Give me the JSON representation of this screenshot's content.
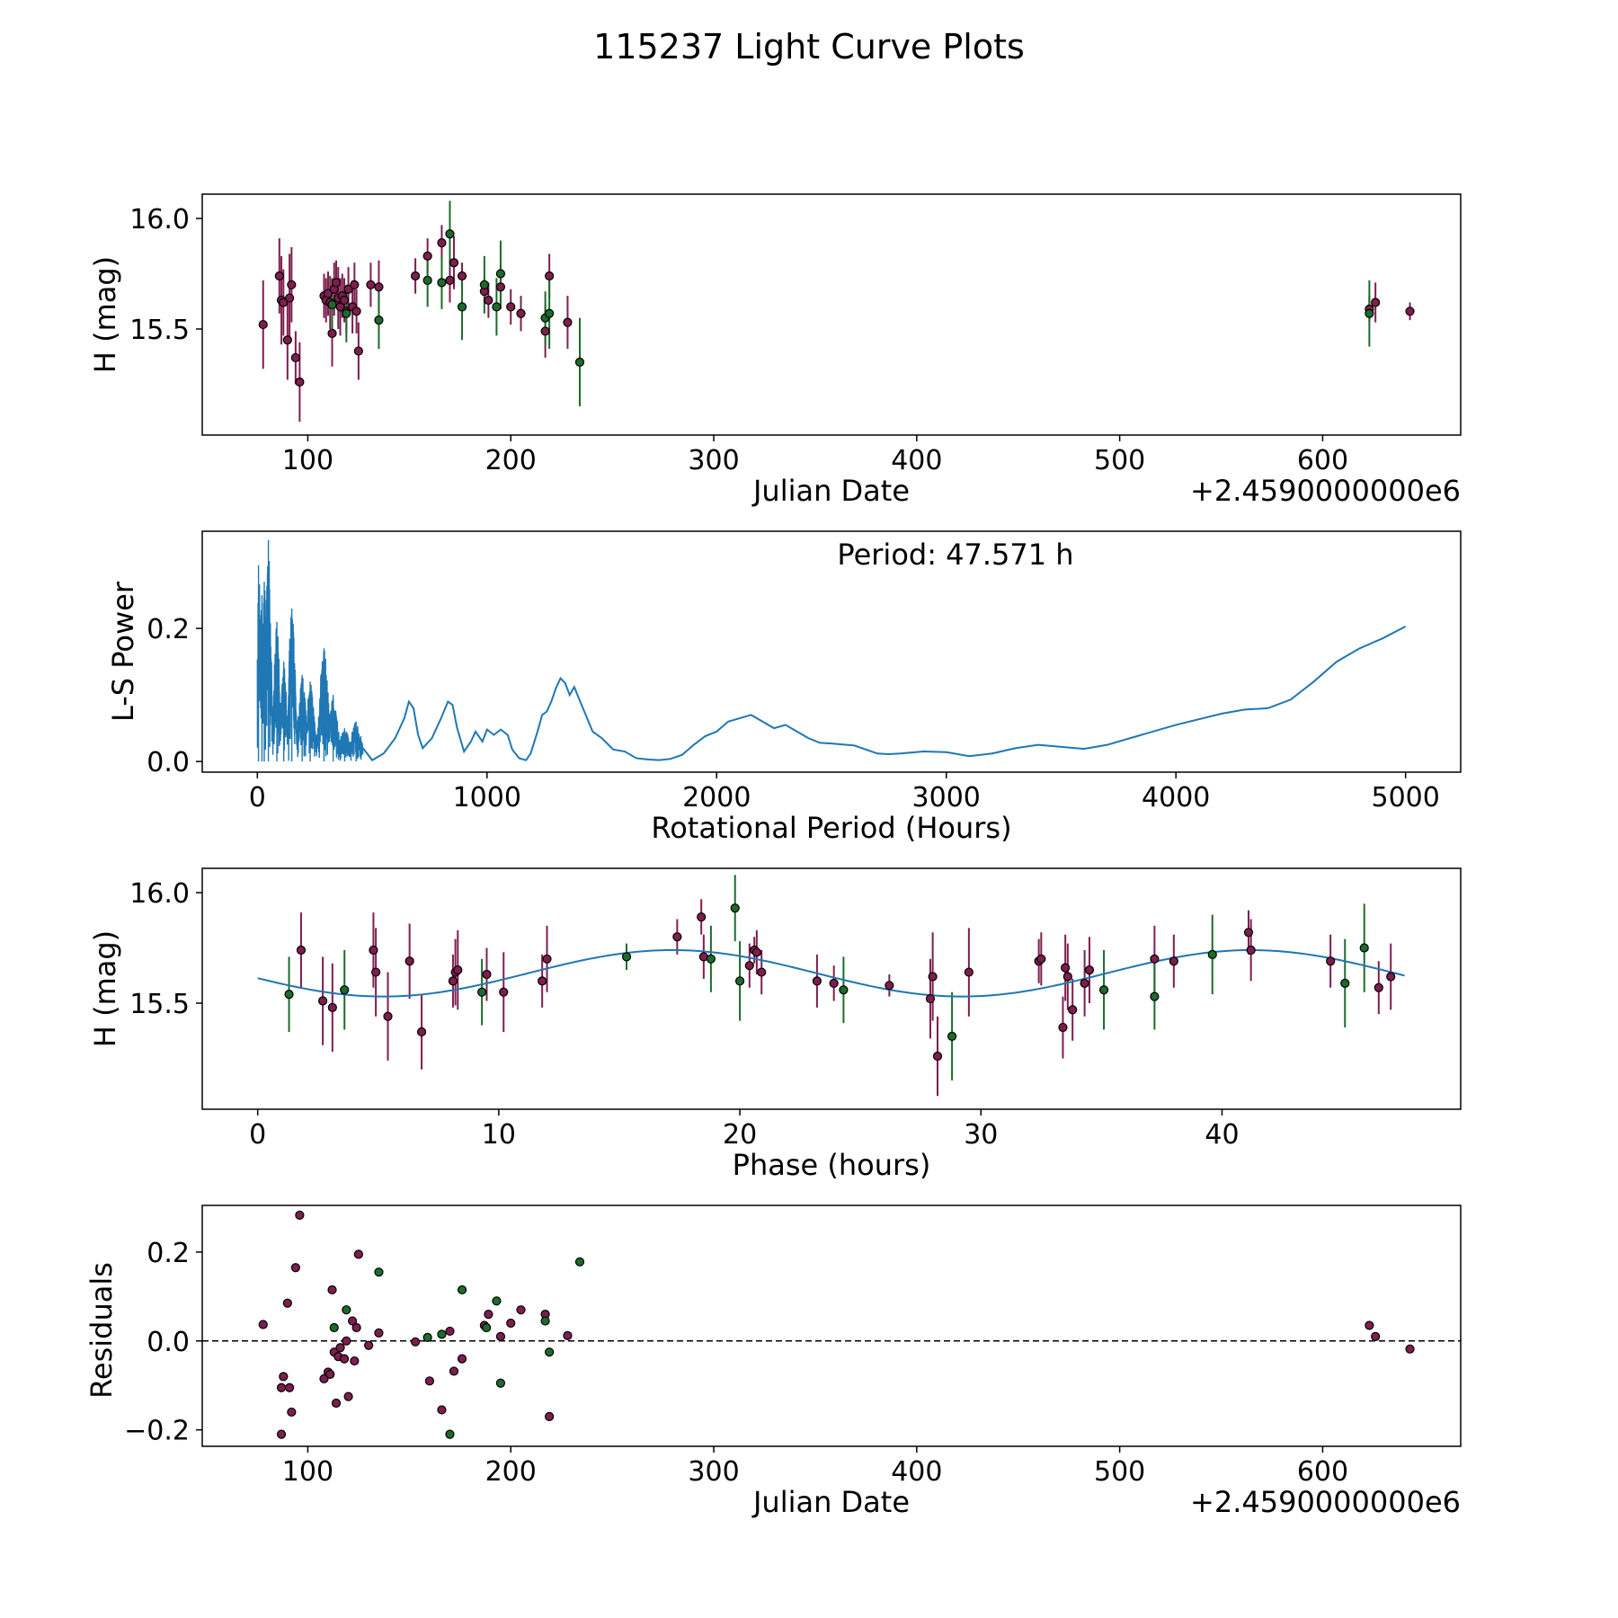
{
  "title": "115237 Light Curve Plots",
  "colors": {
    "red": "#7e1e4e",
    "green": "#1c6b2c",
    "blue": "#1f77b4",
    "edge": "#000000"
  },
  "chart_data": [
    {
      "id": "lightcurve",
      "type": "scatter",
      "xlabel": "Julian Date",
      "ylabel": "H (mag)",
      "offset_text": "+2.4590000000e6",
      "xlim": [
        48,
        668
      ],
      "ylim": [
        15.02,
        16.11
      ],
      "xticks": [
        100,
        200,
        300,
        400,
        500,
        600
      ],
      "xtick_labels": [
        "100",
        "200",
        "300",
        "400",
        "500",
        "600"
      ],
      "yticks": [
        15.5,
        16.0
      ],
      "ytick_labels": [
        "15.5",
        "16.0"
      ],
      "series": [
        {
          "name": "red",
          "x": [
            78,
            86,
            87,
            88,
            90,
            91,
            92,
            94,
            96,
            108,
            109,
            110,
            111,
            112,
            113,
            114,
            115,
            116,
            117,
            118,
            119,
            120,
            122,
            123,
            124,
            125,
            131,
            135,
            153,
            159,
            166,
            170,
            172,
            176,
            187,
            189,
            195,
            200,
            205,
            217,
            219,
            228,
            623,
            626,
            643
          ],
          "y": [
            15.52,
            15.74,
            15.63,
            15.62,
            15.45,
            15.64,
            15.7,
            15.37,
            15.26,
            15.65,
            15.63,
            15.66,
            15.62,
            15.48,
            15.68,
            15.71,
            15.64,
            15.6,
            15.65,
            15.63,
            15.58,
            15.68,
            15.6,
            15.7,
            15.58,
            15.4,
            15.7,
            15.69,
            15.74,
            15.83,
            15.89,
            15.72,
            15.8,
            15.74,
            15.67,
            15.63,
            15.69,
            15.6,
            15.57,
            15.49,
            15.74,
            15.53,
            15.59,
            15.62,
            15.58
          ],
          "err": [
            0.2,
            0.17,
            0.2,
            0.15,
            0.18,
            0.2,
            0.17,
            0.12,
            0.18,
            0.1,
            0.1,
            0.1,
            0.12,
            0.15,
            0.12,
            0.1,
            0.14,
            0.13,
            0.1,
            0.1,
            0.1,
            0.1,
            0.12,
            0.1,
            0.1,
            0.13,
            0.1,
            0.12,
            0.08,
            0.08,
            0.08,
            0.1,
            0.12,
            0.06,
            0.06,
            0.08,
            0.1,
            0.08,
            0.08,
            0.12,
            0.1,
            0.12,
            0.06,
            0.09,
            0.04
          ]
        },
        {
          "name": "green",
          "x": [
            112,
            119,
            135,
            159,
            166,
            170,
            176,
            187,
            193,
            195,
            217,
            219,
            234,
            623
          ],
          "y": [
            15.61,
            15.57,
            15.54,
            15.72,
            15.71,
            15.93,
            15.6,
            15.7,
            15.6,
            15.75,
            15.55,
            15.57,
            15.35,
            15.57
          ]
        },
        {
          "name": "green-err",
          "err": [
            0.12,
            0.13,
            0.13,
            0.12,
            0.12,
            0.15,
            0.15,
            0.13,
            0.13,
            0.15,
            0.12,
            0.16,
            0.2,
            0.15
          ]
        }
      ]
    },
    {
      "id": "periodogram",
      "type": "line",
      "xlabel": "Rotational Period (Hours)",
      "ylabel": "L-S Power",
      "annotation": "Period: 47.571 h",
      "xlim": [
        -240,
        5240
      ],
      "ylim": [
        -0.016,
        0.346
      ],
      "xticks": [
        0,
        1000,
        2000,
        3000,
        4000,
        5000
      ],
      "xtick_labels": [
        "0",
        "1000",
        "2000",
        "3000",
        "4000",
        "5000"
      ],
      "yticks": [
        0.0,
        0.2
      ],
      "ytick_labels": [
        "0.0",
        "0.2"
      ],
      "x": [
        500,
        550,
        600,
        640,
        660,
        680,
        700,
        720,
        760,
        800,
        830,
        850,
        870,
        900,
        930,
        950,
        980,
        1000,
        1030,
        1060,
        1090,
        1110,
        1140,
        1170,
        1190,
        1220,
        1240,
        1260,
        1280,
        1300,
        1320,
        1340,
        1360,
        1380,
        1400,
        1430,
        1460,
        1500,
        1550,
        1600,
        1650,
        1700,
        1750,
        1800,
        1850,
        1900,
        1950,
        2000,
        2050,
        2100,
        2150,
        2200,
        2250,
        2300,
        2350,
        2400,
        2450,
        2500,
        2600,
        2700,
        2750,
        2800,
        2900,
        3000,
        3100,
        3200,
        3300,
        3400,
        3500,
        3600,
        3700,
        3800,
        4000,
        4200,
        4300,
        4400,
        4500,
        4600,
        4700,
        4800,
        4900,
        5000
      ],
      "y": [
        0.002,
        0.012,
        0.035,
        0.065,
        0.09,
        0.08,
        0.04,
        0.02,
        0.035,
        0.065,
        0.09,
        0.085,
        0.05,
        0.015,
        0.03,
        0.045,
        0.03,
        0.048,
        0.04,
        0.048,
        0.04,
        0.018,
        0.005,
        0.002,
        0.012,
        0.045,
        0.07,
        0.075,
        0.09,
        0.11,
        0.125,
        0.118,
        0.1,
        0.112,
        0.095,
        0.07,
        0.045,
        0.035,
        0.018,
        0.015,
        0.005,
        0.003,
        0.002,
        0.004,
        0.01,
        0.025,
        0.038,
        0.045,
        0.06,
        0.065,
        0.07,
        0.06,
        0.05,
        0.055,
        0.045,
        0.035,
        0.028,
        0.027,
        0.024,
        0.012,
        0.011,
        0.012,
        0.015,
        0.014,
        0.008,
        0.012,
        0.02,
        0.025,
        0.022,
        0.019,
        0.025,
        0.035,
        0.055,
        0.072,
        0.078,
        0.08,
        0.093,
        0.12,
        0.15,
        0.17,
        0.185,
        0.203
      ],
      "dense_region": {
        "x_range": [
          0,
          460
        ],
        "peaks": [
          [
            5,
            0.295
          ],
          [
            30,
            0.27
          ],
          [
            48,
            0.333
          ],
          [
            20,
            0.25
          ],
          [
            85,
            0.21
          ],
          [
            150,
            0.23
          ],
          [
            290,
            0.17
          ],
          [
            230,
            0.12
          ],
          [
            330,
            0.1
          ],
          [
            430,
            0.06
          ],
          [
            380,
            0.05
          ],
          [
            115,
            0.15
          ],
          [
            195,
            0.13
          ]
        ]
      }
    },
    {
      "id": "phasefold",
      "type": "scatter",
      "xlabel": "Phase (hours)",
      "ylabel": "H (mag)",
      "xlim": [
        -2.3,
        49.9
      ],
      "ylim": [
        15.02,
        16.11
      ],
      "xticks": [
        0,
        10,
        20,
        30,
        40
      ],
      "xtick_labels": [
        "0",
        "10",
        "20",
        "30",
        "40"
      ],
      "yticks": [
        15.5,
        16.0
      ],
      "ytick_labels": [
        "15.5",
        "16.0"
      ],
      "model": {
        "mean": 15.635,
        "amplitude": 0.105,
        "period": 24.0,
        "peak_at": 17.2,
        "x_range": [
          0,
          47.571
        ]
      },
      "series": [
        {
          "name": "red",
          "x": [
            1.8,
            2.7,
            3.1,
            4.8,
            4.9,
            5.4,
            6.3,
            6.8,
            8.1,
            8.2,
            8.3,
            9.5,
            10.2,
            11.8,
            12.0,
            17.4,
            18.4,
            18.5,
            20.4,
            20.6,
            20.7,
            20.9,
            23.2,
            23.9,
            26.2,
            27.9,
            28.0,
            28.2,
            29.5,
            32.4,
            32.5,
            33.4,
            33.5,
            33.6,
            33.8,
            34.3,
            34.5,
            37.2,
            38.0,
            41.1,
            41.2,
            44.5,
            46.5,
            47.0
          ],
          "y": [
            15.74,
            15.51,
            15.48,
            15.74,
            15.64,
            15.44,
            15.69,
            15.37,
            15.6,
            15.64,
            15.65,
            15.63,
            15.55,
            15.6,
            15.7,
            15.8,
            15.89,
            15.71,
            15.67,
            15.74,
            15.73,
            15.64,
            15.6,
            15.59,
            15.58,
            15.52,
            15.62,
            15.26,
            15.64,
            15.69,
            15.7,
            15.39,
            15.66,
            15.62,
            15.47,
            15.59,
            15.65,
            15.7,
            15.69,
            15.82,
            15.74,
            15.69,
            15.57,
            15.62
          ],
          "err": [
            0.17,
            0.2,
            0.2,
            0.17,
            0.2,
            0.2,
            0.17,
            0.17,
            0.12,
            0.15,
            0.18,
            0.12,
            0.18,
            0.12,
            0.15,
            0.08,
            0.08,
            0.1,
            0.1,
            0.06,
            0.1,
            0.1,
            0.12,
            0.08,
            0.05,
            0.18,
            0.2,
            0.18,
            0.2,
            0.1,
            0.12,
            0.14,
            0.15,
            0.15,
            0.14,
            0.15,
            0.15,
            0.15,
            0.12,
            0.1,
            0.14,
            0.12,
            0.12,
            0.15
          ]
        },
        {
          "name": "green",
          "x": [
            1.3,
            3.6,
            9.3,
            15.3,
            18.8,
            19.8,
            20.0,
            24.3,
            28.8,
            35.1,
            37.2,
            39.6,
            45.1,
            45.9
          ],
          "y": [
            15.54,
            15.56,
            15.55,
            15.71,
            15.7,
            15.93,
            15.6,
            15.56,
            15.35,
            15.56,
            15.53,
            15.72,
            15.59,
            15.75
          ]
        },
        {
          "name": "green-err",
          "err": [
            0.17,
            0.18,
            0.15,
            0.06,
            0.15,
            0.15,
            0.18,
            0.15,
            0.2,
            0.18,
            0.15,
            0.18,
            0.2,
            0.2
          ]
        }
      ]
    },
    {
      "id": "residuals",
      "type": "scatter",
      "xlabel": "Julian Date",
      "ylabel": "Residuals",
      "offset_text": "+2.4590000000e6",
      "xlim": [
        48,
        668
      ],
      "ylim": [
        -0.237,
        0.305
      ],
      "xticks": [
        100,
        200,
        300,
        400,
        500,
        600
      ],
      "xtick_labels": [
        "100",
        "200",
        "300",
        "400",
        "500",
        "600"
      ],
      "yticks": [
        -0.2,
        0.0,
        0.2
      ],
      "ytick_labels": [
        "−0.2",
        "0.0",
        "0.2"
      ],
      "zero_line": 0.0,
      "series": [
        {
          "name": "red",
          "x": [
            78,
            87,
            87,
            88,
            90,
            91,
            92,
            94,
            96,
            108,
            110,
            111,
            112,
            113,
            114,
            115,
            116,
            118,
            119,
            120,
            122,
            123,
            124,
            125,
            130,
            135,
            153,
            160,
            166,
            170,
            172,
            176,
            187,
            189,
            195,
            200,
            205,
            217,
            219,
            228,
            623,
            626,
            643
          ],
          "y": [
            0.037,
            -0.21,
            -0.105,
            -0.08,
            0.085,
            -0.105,
            -0.16,
            0.165,
            0.283,
            -0.085,
            -0.07,
            -0.075,
            0.115,
            -0.025,
            -0.14,
            -0.035,
            -0.015,
            -0.04,
            0.0,
            -0.125,
            0.045,
            -0.045,
            0.03,
            0.195,
            -0.01,
            0.018,
            -0.002,
            -0.09,
            -0.155,
            0.022,
            -0.068,
            -0.04,
            0.035,
            0.06,
            0.01,
            0.04,
            0.07,
            0.06,
            -0.17,
            0.012,
            0.035,
            0.01,
            -0.018
          ]
        },
        {
          "name": "green",
          "x": [
            113,
            119,
            135,
            159,
            166,
            170,
            176,
            188,
            193,
            195,
            217,
            219,
            234
          ],
          "y": [
            0.03,
            0.07,
            0.155,
            0.008,
            0.015,
            -0.21,
            0.115,
            0.03,
            0.09,
            -0.095,
            0.045,
            -0.025,
            0.178
          ]
        }
      ]
    }
  ]
}
